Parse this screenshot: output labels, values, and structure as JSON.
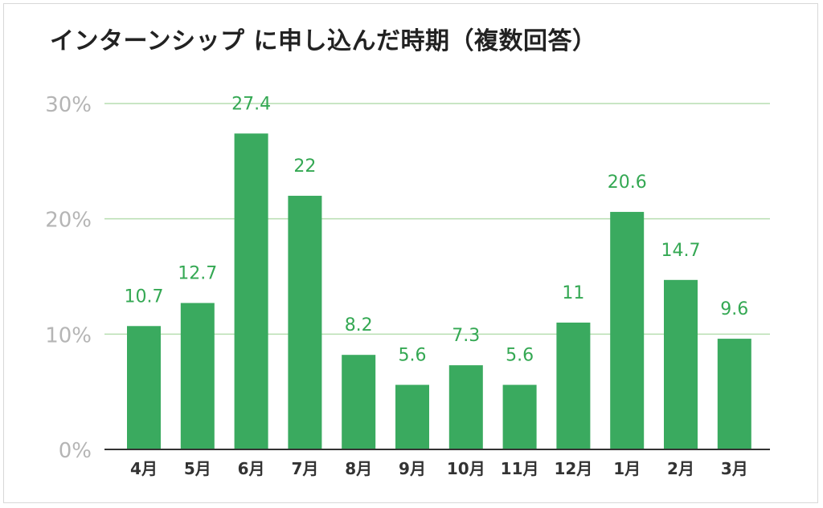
{
  "chart_data": {
    "type": "bar",
    "title": "インターンシップ に申し込んだ時期（複数回答）",
    "categories": [
      "4月",
      "5月",
      "6月",
      "7月",
      "8月",
      "9月",
      "10月",
      "11月",
      "12月",
      "1月",
      "2月",
      "3月"
    ],
    "values": [
      10.7,
      12.7,
      27.4,
      22,
      8.2,
      5.6,
      7.3,
      5.6,
      11,
      20.6,
      14.7,
      9.6
    ],
    "value_labels": [
      "10.7",
      "12.7",
      "27.4",
      "22",
      "8.2",
      "5.6",
      "7.3",
      "5.6",
      "11",
      "20.6",
      "14.7",
      "9.6"
    ],
    "ylim": [
      0,
      30
    ],
    "yticks": [
      0,
      10,
      20,
      30
    ],
    "ytick_labels": [
      "0%",
      "10%",
      "20%",
      "30%"
    ],
    "grid": true,
    "legend": "none",
    "xlabel": "",
    "ylabel": "",
    "colors": {
      "bar": "#3aaa5f",
      "gridline": "#b7deb0",
      "baseline": "#333333",
      "data_label": "#34a853"
    }
  }
}
